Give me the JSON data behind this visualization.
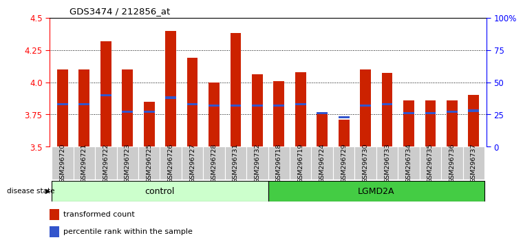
{
  "title": "GDS3474 / 212856_at",
  "samples": [
    "GSM296720",
    "GSM296721",
    "GSM296722",
    "GSM296723",
    "GSM296725",
    "GSM296726",
    "GSM296727",
    "GSM296728",
    "GSM296731",
    "GSM296732",
    "GSM296718",
    "GSM296719",
    "GSM296724",
    "GSM296729",
    "GSM296730",
    "GSM296733",
    "GSM296734",
    "GSM296735",
    "GSM296736",
    "GSM296737"
  ],
  "bar_values": [
    4.1,
    4.1,
    4.32,
    4.1,
    3.85,
    4.4,
    4.19,
    4.0,
    4.38,
    4.06,
    4.01,
    4.08,
    3.76,
    3.71,
    4.1,
    4.07,
    3.86,
    3.86,
    3.86,
    3.9
  ],
  "percentile_values": [
    3.83,
    3.83,
    3.9,
    3.77,
    3.77,
    3.88,
    3.83,
    3.82,
    3.82,
    3.82,
    3.82,
    3.83,
    3.76,
    3.73,
    3.82,
    3.83,
    3.76,
    3.76,
    3.77,
    3.78
  ],
  "bar_bottom": 3.5,
  "ylim_left": [
    3.5,
    4.5
  ],
  "ylim_right": [
    0,
    100
  ],
  "yticks_left": [
    3.5,
    3.75,
    4.0,
    4.25,
    4.5
  ],
  "yticks_right": [
    0,
    25,
    50,
    75,
    100
  ],
  "ytick_labels_right": [
    "0",
    "25",
    "50",
    "75",
    "100%"
  ],
  "bar_color": "#cc2200",
  "percentile_color": "#3355cc",
  "control_label": "control",
  "lgmd_label": "LGMD2A",
  "disease_state_label": "disease state",
  "legend_bar_label": "transformed count",
  "legend_pct_label": "percentile rank within the sample",
  "control_count": 10,
  "lgmd_count": 10,
  "control_bg": "#ccffcc",
  "lgmd_bg": "#44cc44",
  "tick_bg": "#cccccc",
  "grid_style": "dotted",
  "bar_width": 0.5
}
